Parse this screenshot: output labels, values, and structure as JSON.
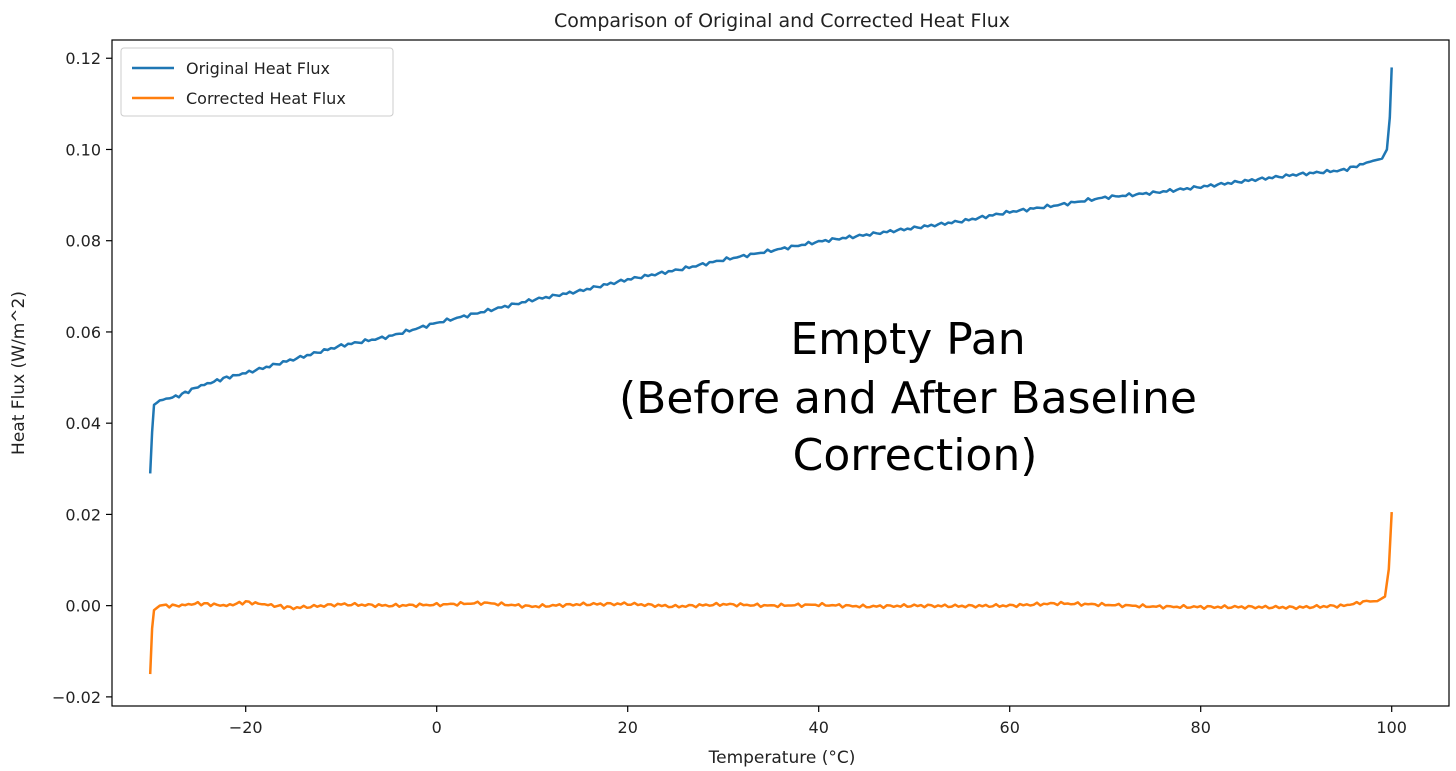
{
  "chart_data": {
    "type": "line",
    "title": "Comparison of Original and Corrected Heat Flux",
    "xlabel": "Temperature (°C)",
    "ylabel": "Heat Flux (W/m^2)",
    "xlim": [
      -34,
      106
    ],
    "ylim": [
      -0.022,
      0.124
    ],
    "xticks": [
      -20,
      0,
      20,
      40,
      60,
      80,
      100
    ],
    "xtick_labels": [
      "−20",
      "0",
      "20",
      "40",
      "60",
      "80",
      "100"
    ],
    "yticks": [
      -0.02,
      0.0,
      0.02,
      0.04,
      0.06,
      0.08,
      0.1,
      0.12
    ],
    "ytick_labels": [
      "−0.02",
      "0.00",
      "0.02",
      "0.04",
      "0.06",
      "0.08",
      "0.10",
      "0.12"
    ],
    "grid": false,
    "legend_position": "top-left",
    "annotation": {
      "lines": [
        "Empty Pan",
        "(Before and After Baseline",
        "Correction)"
      ],
      "x": 50,
      "y": 0.05
    },
    "series": [
      {
        "name": "Original Heat Flux",
        "color": "#1f77b4",
        "x": [
          -30,
          -29.8,
          -29.6,
          -29,
          -27,
          -25,
          -22,
          -20,
          -15,
          -10,
          -5,
          0,
          5,
          10,
          15,
          20,
          25,
          30,
          35,
          40,
          45,
          50,
          55,
          60,
          65,
          70,
          75,
          80,
          85,
          90,
          95,
          98,
          99,
          99.5,
          99.8,
          100
        ],
        "y": [
          0.029,
          0.038,
          0.044,
          0.045,
          0.046,
          0.048,
          0.05,
          0.051,
          0.054,
          0.057,
          0.059,
          0.062,
          0.0645,
          0.067,
          0.069,
          0.0715,
          0.0735,
          0.0758,
          0.0778,
          0.0798,
          0.0813,
          0.0828,
          0.0843,
          0.0863,
          0.0878,
          0.0895,
          0.0905,
          0.0918,
          0.0932,
          0.0945,
          0.0955,
          0.0975,
          0.098,
          0.1,
          0.107,
          0.118
        ]
      },
      {
        "name": "Corrected Heat Flux",
        "color": "#ff7f0e",
        "x": [
          -30,
          -29.8,
          -29.6,
          -29,
          -27,
          -25,
          -22,
          -20,
          -17,
          -15,
          -10,
          -5,
          0,
          5,
          10,
          15,
          20,
          25,
          30,
          35,
          40,
          45,
          50,
          55,
          60,
          65,
          70,
          75,
          80,
          85,
          90,
          95,
          97,
          98.5,
          99.3,
          99.7,
          100
        ],
        "y": [
          -0.015,
          -0.005,
          -0.001,
          0.0,
          0.0,
          0.0005,
          0.0,
          0.0008,
          0.0,
          -0.0005,
          0.0003,
          0.0,
          0.0002,
          0.0006,
          -0.0002,
          0.0003,
          0.0004,
          -0.0002,
          0.0003,
          0.0,
          0.0002,
          -0.0002,
          0.0,
          -0.0001,
          0.0,
          0.0005,
          0.0002,
          -0.0002,
          -0.0003,
          -0.0003,
          -0.0004,
          0.0,
          0.0008,
          0.001,
          0.002,
          0.008,
          0.0205
        ]
      }
    ]
  }
}
